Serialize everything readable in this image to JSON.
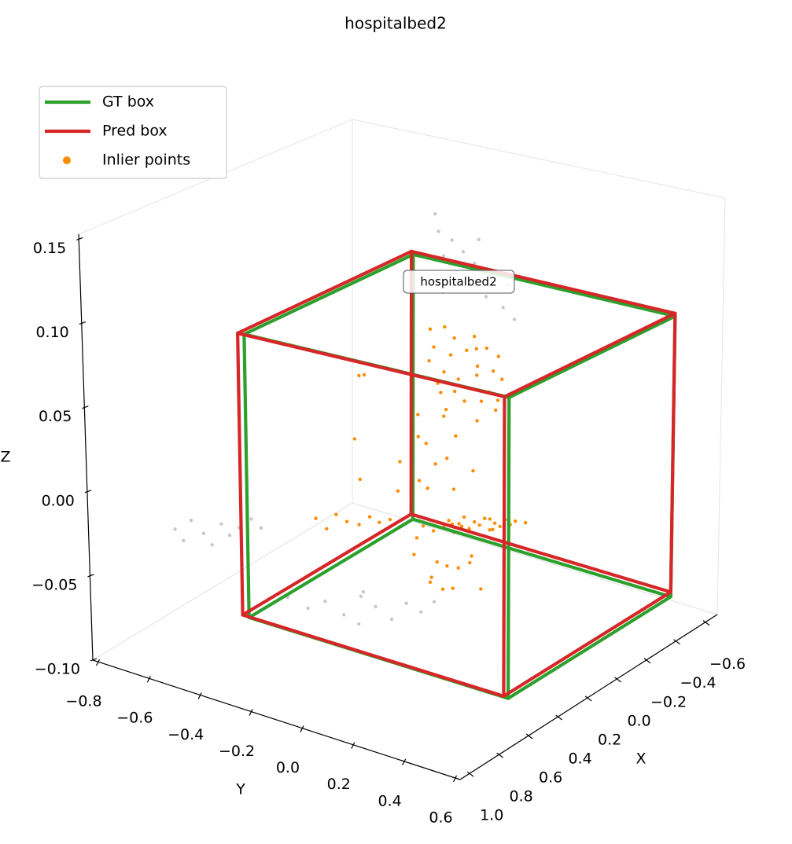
{
  "chart_data": {
    "type": "scatter3d",
    "title": "hospitalbed2",
    "x_label": "X",
    "y_label": "Y",
    "z_label": "Z",
    "annotation": "hospitalbed2",
    "xlim": [
      -0.68,
      1.065
    ],
    "ylim": [
      -0.82,
      0.62
    ],
    "zlim": [
      -0.1,
      0.153
    ],
    "xticks": [
      {
        "value": -0.6,
        "label": "−0.6"
      },
      {
        "value": -0.4,
        "label": "−0.4"
      },
      {
        "value": -0.2,
        "label": "−0.2"
      },
      {
        "value": 0,
        "label": "0.0"
      },
      0.2,
      0.4,
      0.6,
      0.8,
      {
        "value": 1,
        "label": "1.0"
      }
    ],
    "yticks": [
      {
        "value": -0.8,
        "label": "−0.8"
      },
      {
        "value": -0.6,
        "label": "−0.6"
      },
      {
        "value": -0.4,
        "label": "−0.4"
      },
      {
        "value": -0.2,
        "label": "−0.2"
      },
      {
        "value": 0,
        "label": "0.0"
      },
      0.2,
      0.4,
      0.6
    ],
    "zticks": [
      {
        "value": -0.1,
        "label": "−0.10"
      },
      {
        "value": -0.05,
        "label": "−0.05"
      },
      {
        "value": 0,
        "label": "0.00"
      },
      0.05,
      {
        "value": 0.1,
        "label": "0.10"
      },
      0.15
    ],
    "grid": false,
    "legend_position": "upper left",
    "series": [
      {
        "name": "GT box",
        "color": "#2ca02c",
        "x": [
          -0.49,
          0.61
        ],
        "y": [
          -0.47,
          0.545
        ],
        "z": [
          -0.082,
          0.087
        ]
      },
      {
        "name": "Pred box",
        "color": "#d62728",
        "x": [
          -0.5,
          0.63
        ],
        "y": [
          -0.483,
          0.539
        ],
        "z": [
          -0.08,
          0.088
        ]
      },
      {
        "name": "Inlier points",
        "color": "#ff8c00",
        "marker": "o",
        "x": [
          -0.45,
          -0.46,
          -0.44,
          -0.47,
          -0.45,
          -0.46,
          -0.44,
          -0.45,
          -0.47,
          -0.44,
          -0.46,
          -0.45,
          -0.46,
          -0.44,
          -0.45,
          -0.47,
          -0.45,
          -0.44,
          -0.45,
          -0.46,
          -0.44,
          -0.45,
          -0.46,
          -0.45,
          -0.3,
          -0.25,
          -0.2,
          -0.15,
          -0.32,
          -0.1,
          -0.28,
          -0.22,
          -0.12,
          -0.18,
          -0.08,
          -0.26,
          -0.14,
          -0.06,
          -0.2,
          -0.1,
          0.09,
          0.078,
          0.066,
          0.054,
          0.042,
          0.03,
          0.018,
          0.006,
          -0.006,
          -0.018,
          -0.03,
          -0.042,
          -0.054,
          -0.066,
          -0.078,
          -0.09,
          -0.102,
          -0.114,
          -0.126,
          -0.15,
          0.02,
          -0.05,
          0.05,
          -0.1,
          0.1,
          0.05,
          -0.02,
          0.08,
          0,
          -0.06,
          0.12,
          0.03,
          -0.04,
          0.06,
          -0.08,
          0.01,
          0.31,
          0.29,
          0.26,
          0.24,
          0.21,
          0.19,
          0.16,
          0.14,
          0.11,
          0.09,
          -0.1,
          -0.05,
          0.1,
          0.15
        ],
        "y": [
          -0.38,
          -0.33,
          -0.28,
          -0.22,
          -0.16,
          -0.12,
          -0.36,
          -0.3,
          -0.25,
          -0.19,
          -0.14,
          -0.1,
          -0.39,
          -0.32,
          -0.27,
          -0.21,
          -0.15,
          -0.11,
          -0.35,
          -0.29,
          -0.24,
          -0.18,
          -0.13,
          -0.2,
          -0.25,
          -0.2,
          -0.28,
          -0.15,
          -0.12,
          -0.22,
          -0.18,
          -0.26,
          -0.12,
          -0.2,
          -0.28,
          -0.1,
          -0.24,
          -0.16,
          -0.14,
          -0.3,
          -0.09,
          -0.077,
          -0.064,
          -0.051,
          -0.038,
          -0.025,
          -0.012,
          0.001,
          0.014,
          0.027,
          0.04,
          0.053,
          0.066,
          0.079,
          0.092,
          0.105,
          0.118,
          0.131,
          0.144,
          0.17,
          0.02,
          0.1,
          0,
          0.06,
          -0.12,
          -0.02,
          -0.1,
          0.02,
          0.04,
          -0.04,
          -0.04,
          -0.15,
          0.06,
          -0.08,
          0,
          -0.06,
          -0.38,
          -0.35,
          -0.33,
          -0.3,
          -0.27,
          -0.24,
          -0.22,
          -0.19,
          -0.17,
          -0.14,
          -0.45,
          -0.4,
          -0.35,
          -0.3
        ],
        "z": [
          0.045,
          0.048,
          0.044,
          0.046,
          0.042,
          0.038,
          0.035,
          0.032,
          0.036,
          0.03,
          0.028,
          0.025,
          0.024,
          0.021,
          0.018,
          0.022,
          0.015,
          0.012,
          0.012,
          0.009,
          0.006,
          0.008,
          0.004,
          0.04,
          0.018,
          0.012,
          0.008,
          0.015,
          0.005,
          0.002,
          -0.005,
          -0.01,
          -0.008,
          -0.018,
          -0.015,
          -0.022,
          -0.028,
          -0.025,
          -0.032,
          -0.035,
          -0.037,
          -0.033,
          -0.04,
          -0.035,
          -0.038,
          -0.034,
          -0.041,
          -0.036,
          -0.032,
          -0.039,
          -0.035,
          -0.037,
          -0.033,
          -0.04,
          -0.036,
          -0.038,
          -0.034,
          -0.037,
          -0.035,
          -0.036,
          -0.036,
          -0.038,
          -0.034,
          -0.036,
          -0.055,
          -0.06,
          -0.065,
          -0.07,
          -0.058,
          -0.068,
          -0.064,
          -0.05,
          -0.075,
          -0.072,
          -0.06,
          -0.078,
          -0.034,
          -0.04,
          -0.032,
          -0.036,
          -0.038,
          -0.033,
          -0.037,
          -0.035,
          -0.04,
          -0.036,
          0.03,
          0.035,
          0.005,
          -0.015
        ]
      }
    ],
    "outlier_points": {
      "color": "#c8c8c8",
      "x": [
        -0.58,
        -0.57,
        -0.59,
        -0.58,
        -0.57,
        -0.58,
        -0.59,
        -0.58,
        -0.57,
        -0.58,
        -0.59,
        -0.58,
        -0.57,
        -0.58,
        0.7,
        0.68,
        0.66,
        0.63,
        0.61,
        0.58,
        0.56,
        0.53,
        0.5,
        0.47,
        0.3,
        0.25,
        0.22,
        0.18,
        0.15,
        0.12,
        0.08,
        0.05,
        0.02,
        0.1,
        0.2,
        0
      ],
      "y": [
        -0.44,
        -0.42,
        -0.38,
        -0.33,
        -0.28,
        -0.22,
        -0.16,
        -0.36,
        -0.3,
        -0.24,
        -0.18,
        -0.13,
        -0.4,
        -0.27,
        -0.7,
        -0.68,
        -0.66,
        -0.63,
        -0.61,
        -0.59,
        -0.57,
        -0.55,
        -0.52,
        -0.5,
        -0.5,
        -0.45,
        -0.4,
        -0.35,
        -0.3,
        -0.26,
        -0.22,
        -0.18,
        -0.14,
        -0.32,
        -0.28,
        -0.1
      ],
      "z": [
        0.11,
        0.1,
        0.095,
        0.09,
        0.085,
        0.08,
        0.075,
        0.075,
        0.07,
        0.065,
        0.06,
        0.055,
        0.085,
        0.1,
        -0.035,
        -0.042,
        -0.03,
        -0.038,
        -0.045,
        -0.033,
        -0.04,
        -0.036,
        -0.031,
        -0.037,
        -0.088,
        -0.095,
        -0.09,
        -0.098,
        -0.086,
        -0.092,
        -0.1,
        -0.09,
        -0.095,
        -0.087,
        -0.099,
        -0.088
      ]
    }
  }
}
